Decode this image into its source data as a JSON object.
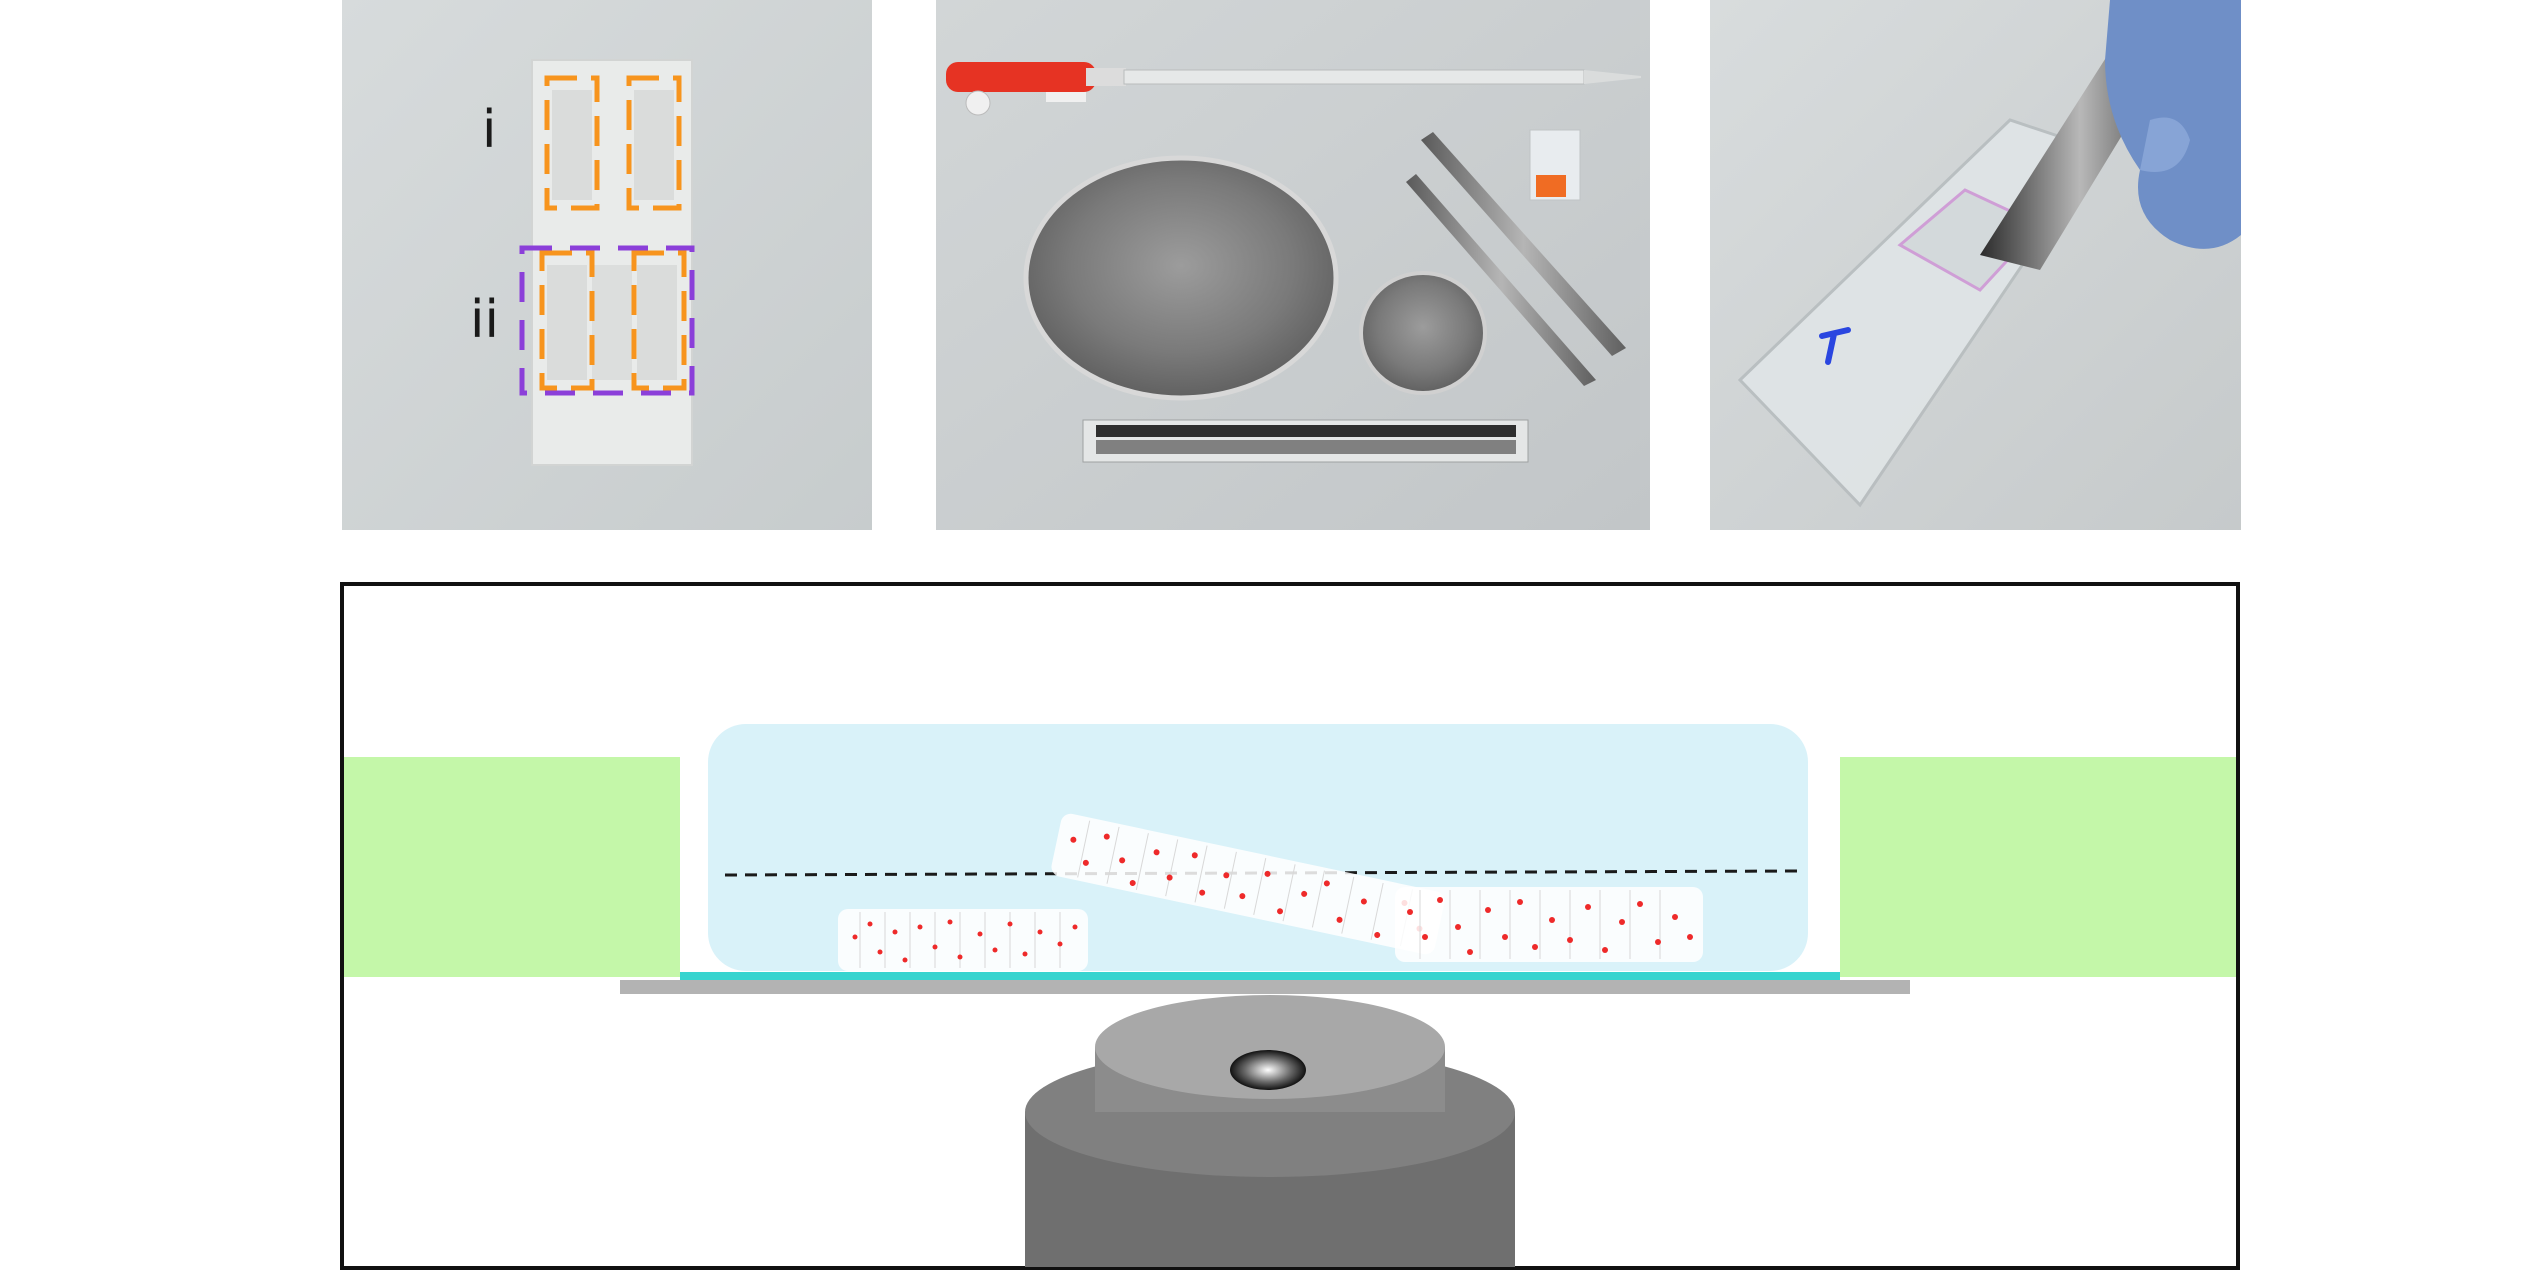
{
  "panels": {
    "photo_a": {
      "labels": [
        "i",
        "ii"
      ]
    },
    "photo_b": {},
    "photo_c": {}
  },
  "colors": {
    "bracket_orange": "#f7941d",
    "bracket_purple": "#8b3fd9",
    "medium_blue": "#d9f2f9",
    "chamber_green": "#c4f7a9",
    "coverslip_cyan": "#37d4cf",
    "stage_gray": "#b3b3b3",
    "cell_red": "#ee2a2a",
    "objective_dark": "#808080",
    "objective_light": "#a8a8a8"
  }
}
